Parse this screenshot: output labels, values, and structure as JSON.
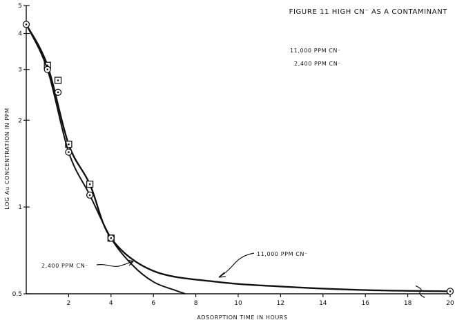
{
  "chart_data": {
    "type": "line",
    "title": "FIGURE 11 HIGH CN⁻ AS A CONTAMINANT",
    "xlabel": "ADSORPTION TIME IN HOURS",
    "ylabel": "LOG Au CONCENTRATION IN PPM",
    "xlim": [
      0,
      20
    ],
    "ylim": [
      0.5,
      5
    ],
    "y_scale": "log",
    "x_ticks": [
      2,
      4,
      6,
      8,
      10,
      12,
      14,
      16,
      18,
      20
    ],
    "x_tick_labels": [
      "2",
      "4",
      "6",
      "8",
      "10",
      "12",
      "14",
      "16",
      "18",
      "20"
    ],
    "y_ticks": [
      0.5,
      1,
      2,
      3,
      4,
      5
    ],
    "y_tick_labels": [
      "0.5",
      "1",
      "2",
      "3",
      "4",
      "5"
    ],
    "legend": [
      "11,000 PPM CN⁻",
      "2,400 PPM CN⁻"
    ],
    "legend_position": "top-right",
    "grid": false,
    "series": [
      {
        "name": "11,000 PPM CN⁻",
        "marker": "square",
        "points": [
          [
            0,
            4.3
          ],
          [
            1,
            3.1
          ],
          [
            2,
            1.65
          ],
          [
            3,
            1.2
          ],
          [
            4,
            0.78
          ],
          [
            6,
            0.6
          ],
          [
            9,
            0.55
          ],
          [
            12,
            0.53
          ],
          [
            16,
            0.515
          ],
          [
            20,
            0.51
          ]
        ],
        "markers": [
          [
            1,
            3.1
          ],
          [
            1.5,
            2.75
          ],
          [
            2,
            1.65
          ],
          [
            3,
            1.2
          ],
          [
            4,
            0.78
          ]
        ]
      },
      {
        "name": "2,400 PPM CN⁻",
        "marker": "circle",
        "points": [
          [
            0,
            4.3
          ],
          [
            1,
            3.0
          ],
          [
            2,
            1.55
          ],
          [
            3,
            1.1
          ],
          [
            4,
            0.78
          ],
          [
            5,
            0.63
          ],
          [
            6,
            0.55
          ],
          [
            7,
            0.515
          ],
          [
            7.5,
            0.5
          ]
        ],
        "markers": [
          [
            0,
            4.3
          ],
          [
            1,
            3.0
          ],
          [
            1.5,
            2.5
          ],
          [
            2,
            1.55
          ],
          [
            3,
            1.1
          ],
          [
            4,
            0.78
          ]
        ]
      }
    ],
    "annotations": [
      "11,000 PPM CN⁻",
      "2,400 PPM CN⁻"
    ]
  }
}
